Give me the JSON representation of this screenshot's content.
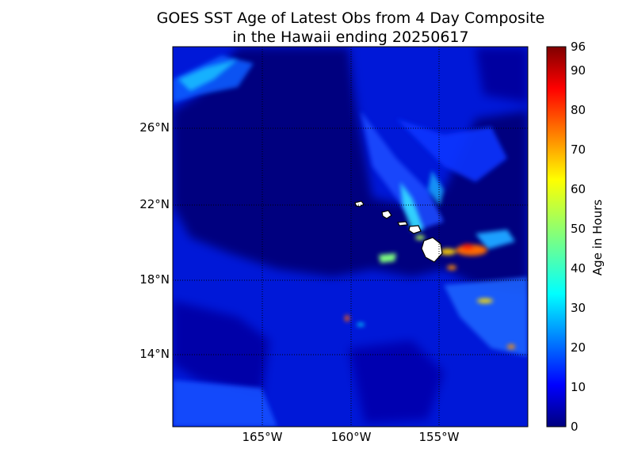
{
  "map": {
    "title_line1": "GOES SST Age of Latest Obs from 4 Day Composite",
    "title_line2": "in the Hawaii ending 20250617",
    "lat_labels": [
      "26°N",
      "22°N",
      "18°N",
      "14°N"
    ],
    "lon_labels": [
      "165°W",
      "160°W",
      "155°W"
    ],
    "colorbar": {
      "label": "Age in Hours",
      "ticks": [
        "96",
        "90",
        "80",
        "70",
        "60",
        "50",
        "40",
        "30",
        "20",
        "10",
        "0"
      ],
      "colormap": "jet",
      "range": [
        0,
        96
      ]
    },
    "colors": {
      "ocean_dark": "#00007f",
      "ocean_blue": "#0028ff",
      "land": "#ffffff",
      "grid": "#000000"
    }
  }
}
